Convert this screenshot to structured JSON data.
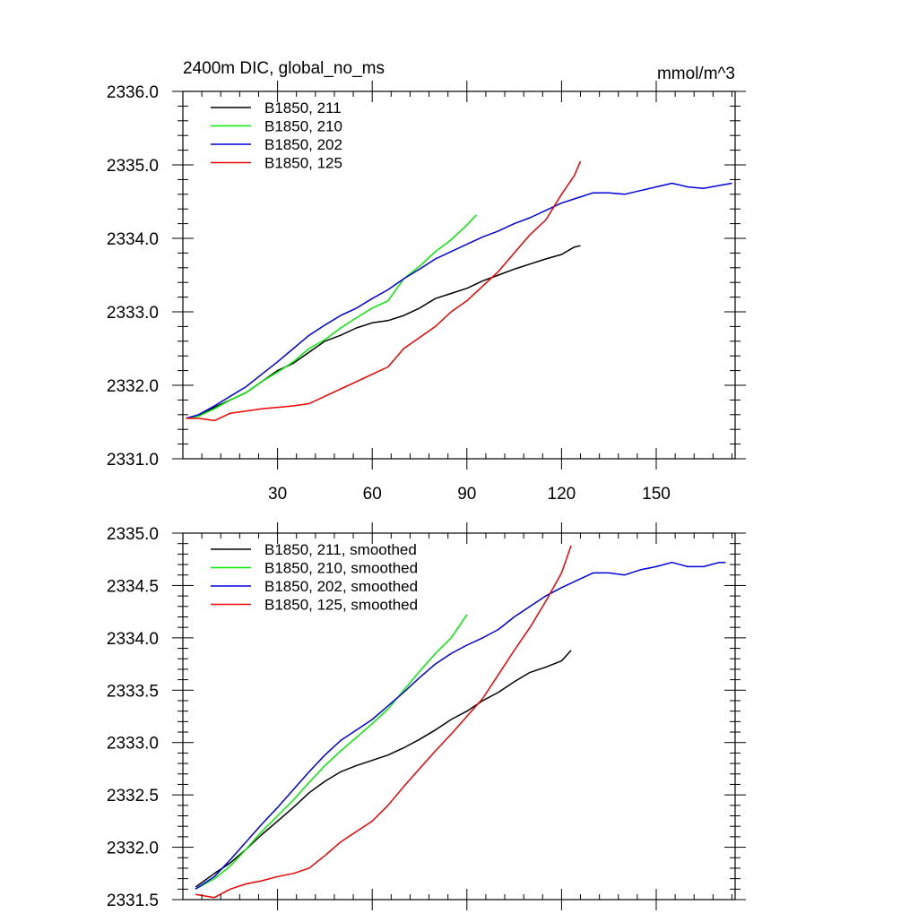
{
  "chart_data": [
    {
      "type": "line",
      "title": "2400m DIC, global_no_ms",
      "units": "mmol/m^3",
      "xlabel": "",
      "ylabel": "",
      "xlim": [
        0,
        175
      ],
      "ylim": [
        2331.0,
        2336.0
      ],
      "x_major_ticks": [
        30,
        60,
        90,
        120,
        150
      ],
      "x_tick_labels": [
        "30",
        "60",
        "90",
        "120",
        "150"
      ],
      "y_major_ticks": [
        2331.0,
        2332.0,
        2333.0,
        2334.0,
        2335.0,
        2336.0
      ],
      "y_tick_labels": [
        "2331.0",
        "2332.0",
        "2333.0",
        "2334.0",
        "2335.0",
        "2336.0"
      ],
      "legend_position": "top-left",
      "series": [
        {
          "name": "B1850, 211",
          "color": "#000000",
          "points": [
            [
              1,
              2331.55
            ],
            [
              5,
              2331.58
            ],
            [
              10,
              2331.7
            ],
            [
              15,
              2331.8
            ],
            [
              20,
              2331.9
            ],
            [
              25,
              2332.05
            ],
            [
              30,
              2332.2
            ],
            [
              35,
              2332.3
            ],
            [
              40,
              2332.45
            ],
            [
              45,
              2332.6
            ],
            [
              50,
              2332.68
            ],
            [
              55,
              2332.78
            ],
            [
              60,
              2332.85
            ],
            [
              65,
              2332.88
            ],
            [
              70,
              2332.95
            ],
            [
              75,
              2333.05
            ],
            [
              80,
              2333.18
            ],
            [
              85,
              2333.25
            ],
            [
              90,
              2333.32
            ],
            [
              95,
              2333.42
            ],
            [
              100,
              2333.5
            ],
            [
              105,
              2333.58
            ],
            [
              110,
              2333.65
            ],
            [
              115,
              2333.72
            ],
            [
              120,
              2333.78
            ],
            [
              124,
              2333.88
            ],
            [
              126,
              2333.9
            ]
          ]
        },
        {
          "name": "B1850, 210",
          "color": "#00ee00",
          "points": [
            [
              1,
              2331.55
            ],
            [
              5,
              2331.58
            ],
            [
              10,
              2331.68
            ],
            [
              15,
              2331.8
            ],
            [
              20,
              2331.9
            ],
            [
              25,
              2332.05
            ],
            [
              30,
              2332.18
            ],
            [
              35,
              2332.32
            ],
            [
              40,
              2332.5
            ],
            [
              45,
              2332.62
            ],
            [
              50,
              2332.78
            ],
            [
              55,
              2332.92
            ],
            [
              60,
              2333.05
            ],
            [
              65,
              2333.15
            ],
            [
              70,
              2333.45
            ],
            [
              75,
              2333.62
            ],
            [
              80,
              2333.82
            ],
            [
              85,
              2333.98
            ],
            [
              90,
              2334.18
            ],
            [
              93,
              2334.32
            ]
          ]
        },
        {
          "name": "B1850, 202",
          "color": "#0000dd",
          "points": [
            [
              1,
              2331.55
            ],
            [
              5,
              2331.6
            ],
            [
              10,
              2331.72
            ],
            [
              15,
              2331.85
            ],
            [
              20,
              2331.98
            ],
            [
              25,
              2332.15
            ],
            [
              30,
              2332.32
            ],
            [
              35,
              2332.5
            ],
            [
              40,
              2332.68
            ],
            [
              45,
              2332.82
            ],
            [
              50,
              2332.95
            ],
            [
              55,
              2333.05
            ],
            [
              60,
              2333.18
            ],
            [
              65,
              2333.3
            ],
            [
              70,
              2333.45
            ],
            [
              75,
              2333.58
            ],
            [
              80,
              2333.72
            ],
            [
              85,
              2333.82
            ],
            [
              90,
              2333.92
            ],
            [
              95,
              2334.02
            ],
            [
              100,
              2334.1
            ],
            [
              105,
              2334.2
            ],
            [
              110,
              2334.28
            ],
            [
              115,
              2334.38
            ],
            [
              120,
              2334.48
            ],
            [
              125,
              2334.55
            ],
            [
              130,
              2334.62
            ],
            [
              135,
              2334.62
            ],
            [
              140,
              2334.6
            ],
            [
              145,
              2334.65
            ],
            [
              150,
              2334.7
            ],
            [
              155,
              2334.75
            ],
            [
              160,
              2334.7
            ],
            [
              165,
              2334.68
            ],
            [
              170,
              2334.72
            ],
            [
              174,
              2334.75
            ]
          ]
        },
        {
          "name": "B1850, 125",
          "color": "#ee0000",
          "points": [
            [
              1,
              2331.55
            ],
            [
              5,
              2331.55
            ],
            [
              10,
              2331.52
            ],
            [
              15,
              2331.62
            ],
            [
              20,
              2331.65
            ],
            [
              25,
              2331.68
            ],
            [
              30,
              2331.7
            ],
            [
              35,
              2331.72
            ],
            [
              40,
              2331.75
            ],
            [
              45,
              2331.85
            ],
            [
              50,
              2331.95
            ],
            [
              55,
              2332.05
            ],
            [
              60,
              2332.15
            ],
            [
              65,
              2332.25
            ],
            [
              70,
              2332.5
            ],
            [
              75,
              2332.65
            ],
            [
              80,
              2332.8
            ],
            [
              85,
              2333.0
            ],
            [
              90,
              2333.15
            ],
            [
              95,
              2333.35
            ],
            [
              100,
              2333.55
            ],
            [
              105,
              2333.8
            ],
            [
              110,
              2334.05
            ],
            [
              115,
              2334.25
            ],
            [
              120,
              2334.6
            ],
            [
              124,
              2334.85
            ],
            [
              126,
              2335.05
            ]
          ]
        }
      ]
    },
    {
      "type": "line",
      "title": "",
      "xlabel": "",
      "ylabel": "",
      "xlim": [
        0,
        175
      ],
      "ylim": [
        2331.5,
        2335.0
      ],
      "x_major_ticks": [
        30,
        60,
        90,
        120,
        150
      ],
      "x_tick_labels": [],
      "y_major_ticks": [
        2331.5,
        2332.0,
        2332.5,
        2333.0,
        2333.5,
        2334.0,
        2334.5,
        2335.0
      ],
      "y_tick_labels": [
        "2331.5",
        "2332.0",
        "2332.5",
        "2333.0",
        "2333.5",
        "2334.0",
        "2334.5",
        "2335.0"
      ],
      "legend_position": "top-left",
      "series": [
        {
          "name": "B1850, 211, smoothed",
          "color": "#000000",
          "points": [
            [
              4,
              2331.62
            ],
            [
              10,
              2331.75
            ],
            [
              15,
              2331.85
            ],
            [
              20,
              2331.98
            ],
            [
              25,
              2332.12
            ],
            [
              30,
              2332.25
            ],
            [
              35,
              2332.38
            ],
            [
              40,
              2332.52
            ],
            [
              45,
              2332.63
            ],
            [
              50,
              2332.72
            ],
            [
              55,
              2332.78
            ],
            [
              60,
              2332.83
            ],
            [
              65,
              2332.88
            ],
            [
              70,
              2332.95
            ],
            [
              75,
              2333.03
            ],
            [
              80,
              2333.12
            ],
            [
              85,
              2333.22
            ],
            [
              90,
              2333.3
            ],
            [
              95,
              2333.4
            ],
            [
              100,
              2333.48
            ],
            [
              105,
              2333.58
            ],
            [
              110,
              2333.67
            ],
            [
              115,
              2333.72
            ],
            [
              120,
              2333.78
            ],
            [
              123,
              2333.88
            ]
          ]
        },
        {
          "name": "B1850, 210, smoothed",
          "color": "#00ee00",
          "points": [
            [
              4,
              2331.6
            ],
            [
              10,
              2331.7
            ],
            [
              15,
              2331.82
            ],
            [
              20,
              2331.98
            ],
            [
              25,
              2332.15
            ],
            [
              30,
              2332.3
            ],
            [
              35,
              2332.45
            ],
            [
              40,
              2332.62
            ],
            [
              45,
              2332.78
            ],
            [
              50,
              2332.92
            ],
            [
              55,
              2333.05
            ],
            [
              60,
              2333.18
            ],
            [
              65,
              2333.32
            ],
            [
              70,
              2333.5
            ],
            [
              75,
              2333.68
            ],
            [
              80,
              2333.85
            ],
            [
              85,
              2334.0
            ],
            [
              90,
              2334.22
            ]
          ]
        },
        {
          "name": "B1850, 202, smoothed",
          "color": "#0000dd",
          "points": [
            [
              4,
              2331.6
            ],
            [
              10,
              2331.72
            ],
            [
              15,
              2331.88
            ],
            [
              20,
              2332.05
            ],
            [
              25,
              2332.22
            ],
            [
              30,
              2332.38
            ],
            [
              35,
              2332.55
            ],
            [
              40,
              2332.72
            ],
            [
              45,
              2332.88
            ],
            [
              50,
              2333.02
            ],
            [
              55,
              2333.12
            ],
            [
              60,
              2333.22
            ],
            [
              65,
              2333.35
            ],
            [
              70,
              2333.48
            ],
            [
              75,
              2333.62
            ],
            [
              80,
              2333.75
            ],
            [
              85,
              2333.85
            ],
            [
              90,
              2333.93
            ],
            [
              95,
              2334.0
            ],
            [
              100,
              2334.08
            ],
            [
              105,
              2334.2
            ],
            [
              110,
              2334.3
            ],
            [
              115,
              2334.4
            ],
            [
              120,
              2334.48
            ],
            [
              125,
              2334.55
            ],
            [
              130,
              2334.62
            ],
            [
              135,
              2334.62
            ],
            [
              140,
              2334.6
            ],
            [
              145,
              2334.65
            ],
            [
              150,
              2334.68
            ],
            [
              155,
              2334.72
            ],
            [
              160,
              2334.68
            ],
            [
              165,
              2334.68
            ],
            [
              170,
              2334.72
            ],
            [
              172,
              2334.72
            ]
          ]
        },
        {
          "name": "B1850, 125, smoothed",
          "color": "#ee0000",
          "points": [
            [
              4,
              2331.55
            ],
            [
              10,
              2331.52
            ],
            [
              15,
              2331.6
            ],
            [
              20,
              2331.65
            ],
            [
              25,
              2331.68
            ],
            [
              30,
              2331.72
            ],
            [
              35,
              2331.75
            ],
            [
              40,
              2331.8
            ],
            [
              45,
              2331.92
            ],
            [
              50,
              2332.05
            ],
            [
              55,
              2332.15
            ],
            [
              60,
              2332.25
            ],
            [
              65,
              2332.4
            ],
            [
              70,
              2332.58
            ],
            [
              75,
              2332.75
            ],
            [
              80,
              2332.92
            ],
            [
              85,
              2333.08
            ],
            [
              90,
              2333.25
            ],
            [
              95,
              2333.42
            ],
            [
              100,
              2333.65
            ],
            [
              105,
              2333.88
            ],
            [
              110,
              2334.1
            ],
            [
              115,
              2334.35
            ],
            [
              120,
              2334.62
            ],
            [
              123,
              2334.88
            ]
          ]
        }
      ]
    }
  ]
}
